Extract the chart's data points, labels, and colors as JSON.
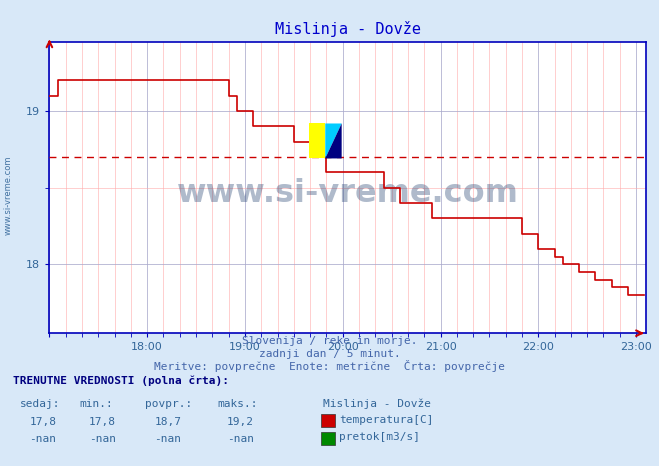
{
  "title": "Mislinja - Dovže",
  "title_color": "#0000cc",
  "bg_color": "#d8e8f8",
  "plot_bg_color": "#ffffff",
  "grid_color_major": "#aaaacc",
  "grid_color_minor": "#ffaaaa",
  "axis_color": "#0000bb",
  "line_color": "#cc0000",
  "dashed_line_color": "#cc0000",
  "dashed_line_y": 18.7,
  "ylabel_color": "#336699",
  "xlabel_color": "#336699",
  "watermark_text": "www.si-vreme.com",
  "watermark_color": "#1a3a6b",
  "watermark_alpha": 0.35,
  "subtitle1": "Slovenija / reke in morje.",
  "subtitle2": "zadnji dan / 5 minut.",
  "subtitle3": "Meritve: povprečne  Enote: metrične  Črta: povprečje",
  "footer_label1": "TRENUTNE VREDNOSTI (polna črta):",
  "footer_cols": [
    "sedaj:",
    "min.:",
    "povpr.:",
    "maks.:"
  ],
  "footer_row1": [
    "17,8",
    "17,8",
    "18,7",
    "19,2"
  ],
  "footer_row2": [
    "-nan",
    "-nan",
    "-nan",
    "-nan"
  ],
  "legend_title": "Mislinja - Dovže",
  "legend_items": [
    "temperatura[C]",
    "pretok[m3/s]"
  ],
  "legend_colors": [
    "#cc0000",
    "#008800"
  ],
  "xmin": 17.0,
  "xmax": 23.1,
  "ymin": 17.55,
  "ymax": 19.45,
  "yticks": [
    18,
    19
  ],
  "xticks": [
    17,
    18,
    19,
    20,
    21,
    22,
    23
  ],
  "xtick_labels": [
    "",
    "18:00",
    "19:00",
    "20:00",
    "21:00",
    "22:00",
    "23:00"
  ],
  "temp_data": [
    [
      17.0,
      19.1
    ],
    [
      17.083,
      19.2
    ],
    [
      17.25,
      19.2
    ],
    [
      17.917,
      19.2
    ],
    [
      18.0,
      19.2
    ],
    [
      18.75,
      19.2
    ],
    [
      18.833,
      19.1
    ],
    [
      18.917,
      19.0
    ],
    [
      19.0,
      19.0
    ],
    [
      19.083,
      18.9
    ],
    [
      19.167,
      18.9
    ],
    [
      19.417,
      18.9
    ],
    [
      19.5,
      18.8
    ],
    [
      19.583,
      18.8
    ],
    [
      19.667,
      18.7
    ],
    [
      19.75,
      18.7
    ],
    [
      19.833,
      18.6
    ],
    [
      20.333,
      18.6
    ],
    [
      20.417,
      18.5
    ],
    [
      20.5,
      18.5
    ],
    [
      20.583,
      18.4
    ],
    [
      20.75,
      18.4
    ],
    [
      20.917,
      18.3
    ],
    [
      21.75,
      18.3
    ],
    [
      21.833,
      18.2
    ],
    [
      21.917,
      18.2
    ],
    [
      22.0,
      18.1
    ],
    [
      22.083,
      18.1
    ],
    [
      22.167,
      18.05
    ],
    [
      22.25,
      18.0
    ],
    [
      22.333,
      18.0
    ],
    [
      22.417,
      17.95
    ],
    [
      22.5,
      17.95
    ],
    [
      22.583,
      17.9
    ],
    [
      22.667,
      17.9
    ],
    [
      22.75,
      17.85
    ],
    [
      22.833,
      17.85
    ],
    [
      22.917,
      17.8
    ],
    [
      23.0,
      17.8
    ],
    [
      23.083,
      17.8
    ]
  ]
}
